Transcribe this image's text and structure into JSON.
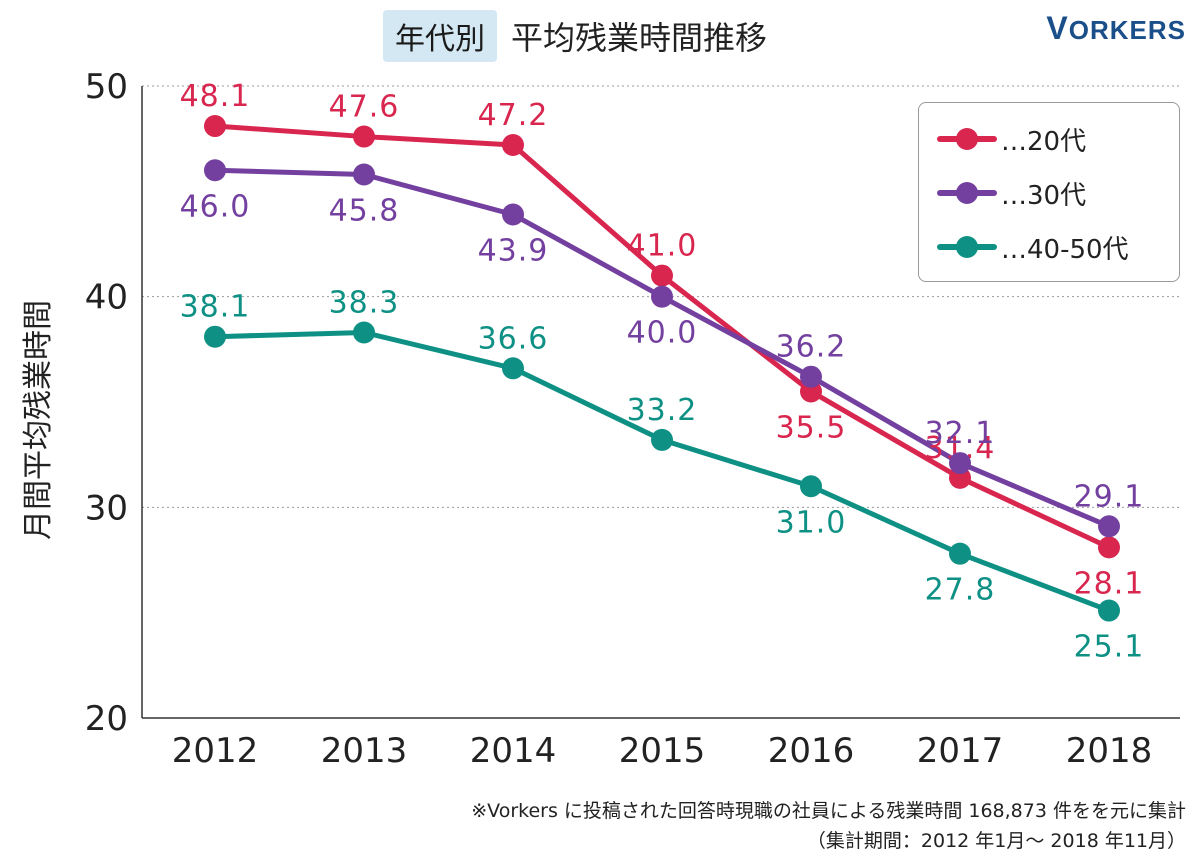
{
  "header": {
    "tag": "年代別",
    "title": "平均残業時間推移",
    "logo_initial": "V",
    "logo_rest": "ORKERS"
  },
  "footnote": {
    "line1": "※Vorkers に投稿された回答時現職の社員による残業時間 168,873 件をを元に集計",
    "line2": "（集計期間：2012 年1月〜 2018 年11月）"
  },
  "chart_data": {
    "type": "line",
    "title": "年代別 平均残業時間推移",
    "xlabel": "",
    "ylabel": "月間平均残業時間",
    "categories": [
      "2012",
      "2013",
      "2014",
      "2015",
      "2016",
      "2017",
      "2018"
    ],
    "ylim": [
      20,
      50
    ],
    "yticks": [
      20,
      30,
      40,
      50
    ],
    "grid": "horizontal dotted at 30, 40, 50",
    "legend_position": "top-right",
    "series": [
      {
        "name": "…20代",
        "color": "#d9264f",
        "values": [
          48.1,
          47.6,
          47.2,
          41.0,
          35.5,
          31.4,
          28.1
        ],
        "labels": [
          "48.1",
          "47.6",
          "47.2",
          "41.0",
          "35.5",
          "31.4",
          "28.1"
        ],
        "label_pos": [
          "above",
          "above",
          "above",
          "above",
          "below",
          "above",
          "below"
        ]
      },
      {
        "name": "…30代",
        "color": "#7340a0",
        "values": [
          46.0,
          45.8,
          43.9,
          40.0,
          36.2,
          32.1,
          29.1
        ],
        "labels": [
          "46.0",
          "45.8",
          "43.9",
          "40.0",
          "36.2",
          "32.1",
          "29.1"
        ],
        "label_pos": [
          "below",
          "below",
          "below",
          "below",
          "above",
          "above",
          "above"
        ]
      },
      {
        "name": "…40-50代",
        "color": "#0e9184",
        "values": [
          38.1,
          38.3,
          36.6,
          33.2,
          31.0,
          27.8,
          25.1
        ],
        "labels": [
          "38.1",
          "38.3",
          "36.6",
          "33.2",
          "31.0",
          "27.8",
          "25.1"
        ],
        "label_pos": [
          "above",
          "above",
          "above",
          "above",
          "below",
          "below",
          "below"
        ]
      }
    ]
  }
}
